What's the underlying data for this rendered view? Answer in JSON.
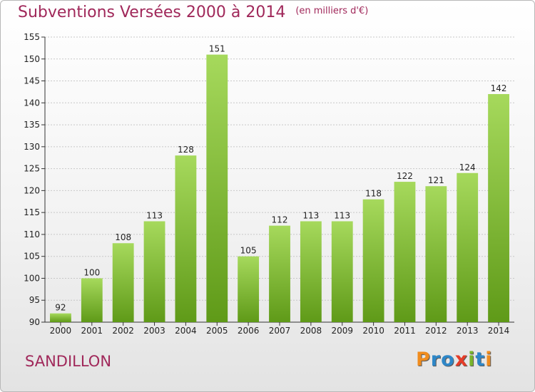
{
  "header": {
    "title": "Subventions Versées 2000 à 2014",
    "unit": "(en milliers d'€)"
  },
  "footer": {
    "city": "SANDILLON",
    "logo_text": "Proxiti"
  },
  "colors": {
    "title": "#a0285a",
    "bar_light": "#a6d95c",
    "bar_dark": "#5f9a18",
    "grid": "#c8c8c8"
  },
  "chart_data": {
    "type": "bar",
    "title": "Subventions Versées 2000 à 2014",
    "xlabel": "",
    "ylabel": "",
    "categories": [
      "2000",
      "2001",
      "2002",
      "2003",
      "2004",
      "2005",
      "2006",
      "2007",
      "2008",
      "2009",
      "2010",
      "2011",
      "2012",
      "2013",
      "2014"
    ],
    "values": [
      92,
      100,
      108,
      113,
      128,
      151,
      105,
      112,
      113,
      113,
      118,
      122,
      121,
      124,
      142
    ],
    "ylim": [
      90,
      155
    ],
    "yticks": [
      90,
      95,
      100,
      105,
      110,
      115,
      120,
      125,
      130,
      135,
      140,
      145,
      150,
      155
    ],
    "grid": true,
    "data_labels": true
  }
}
